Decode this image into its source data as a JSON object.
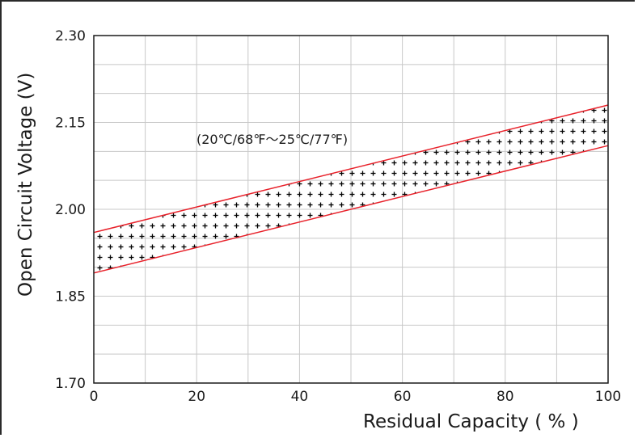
{
  "chart_data": {
    "type": "area",
    "title": "",
    "xlabel": "Residual Capacity ( % )",
    "ylabel": "Open Circuit Voltage (V)",
    "xlim": [
      0,
      100
    ],
    "ylim": [
      1.7,
      2.3
    ],
    "x_ticks": [
      0,
      20,
      40,
      60,
      80,
      100
    ],
    "x_tick_labels": [
      "0",
      "20",
      "40",
      "60",
      "80",
      "100"
    ],
    "y_ticks": [
      1.7,
      1.85,
      2.0,
      2.15,
      2.3
    ],
    "y_tick_labels": [
      "1.70",
      "1.85",
      "2.00",
      "2.15",
      "2.30"
    ],
    "grid": true,
    "annotation": "(20℃/68℉～25℃/77℉)",
    "series": [
      {
        "x": [
          0,
          100
        ],
        "values": [
          1.96,
          2.18
        ]
      },
      {
        "x": [
          0,
          100
        ],
        "values": [
          1.89,
          2.11
        ]
      }
    ],
    "band_fill": "plus-pattern",
    "colors": {
      "bound_line": "#e8212a",
      "grid": "#c8c8c8",
      "frame": "#1a1a1a",
      "pattern": "#000000"
    }
  }
}
